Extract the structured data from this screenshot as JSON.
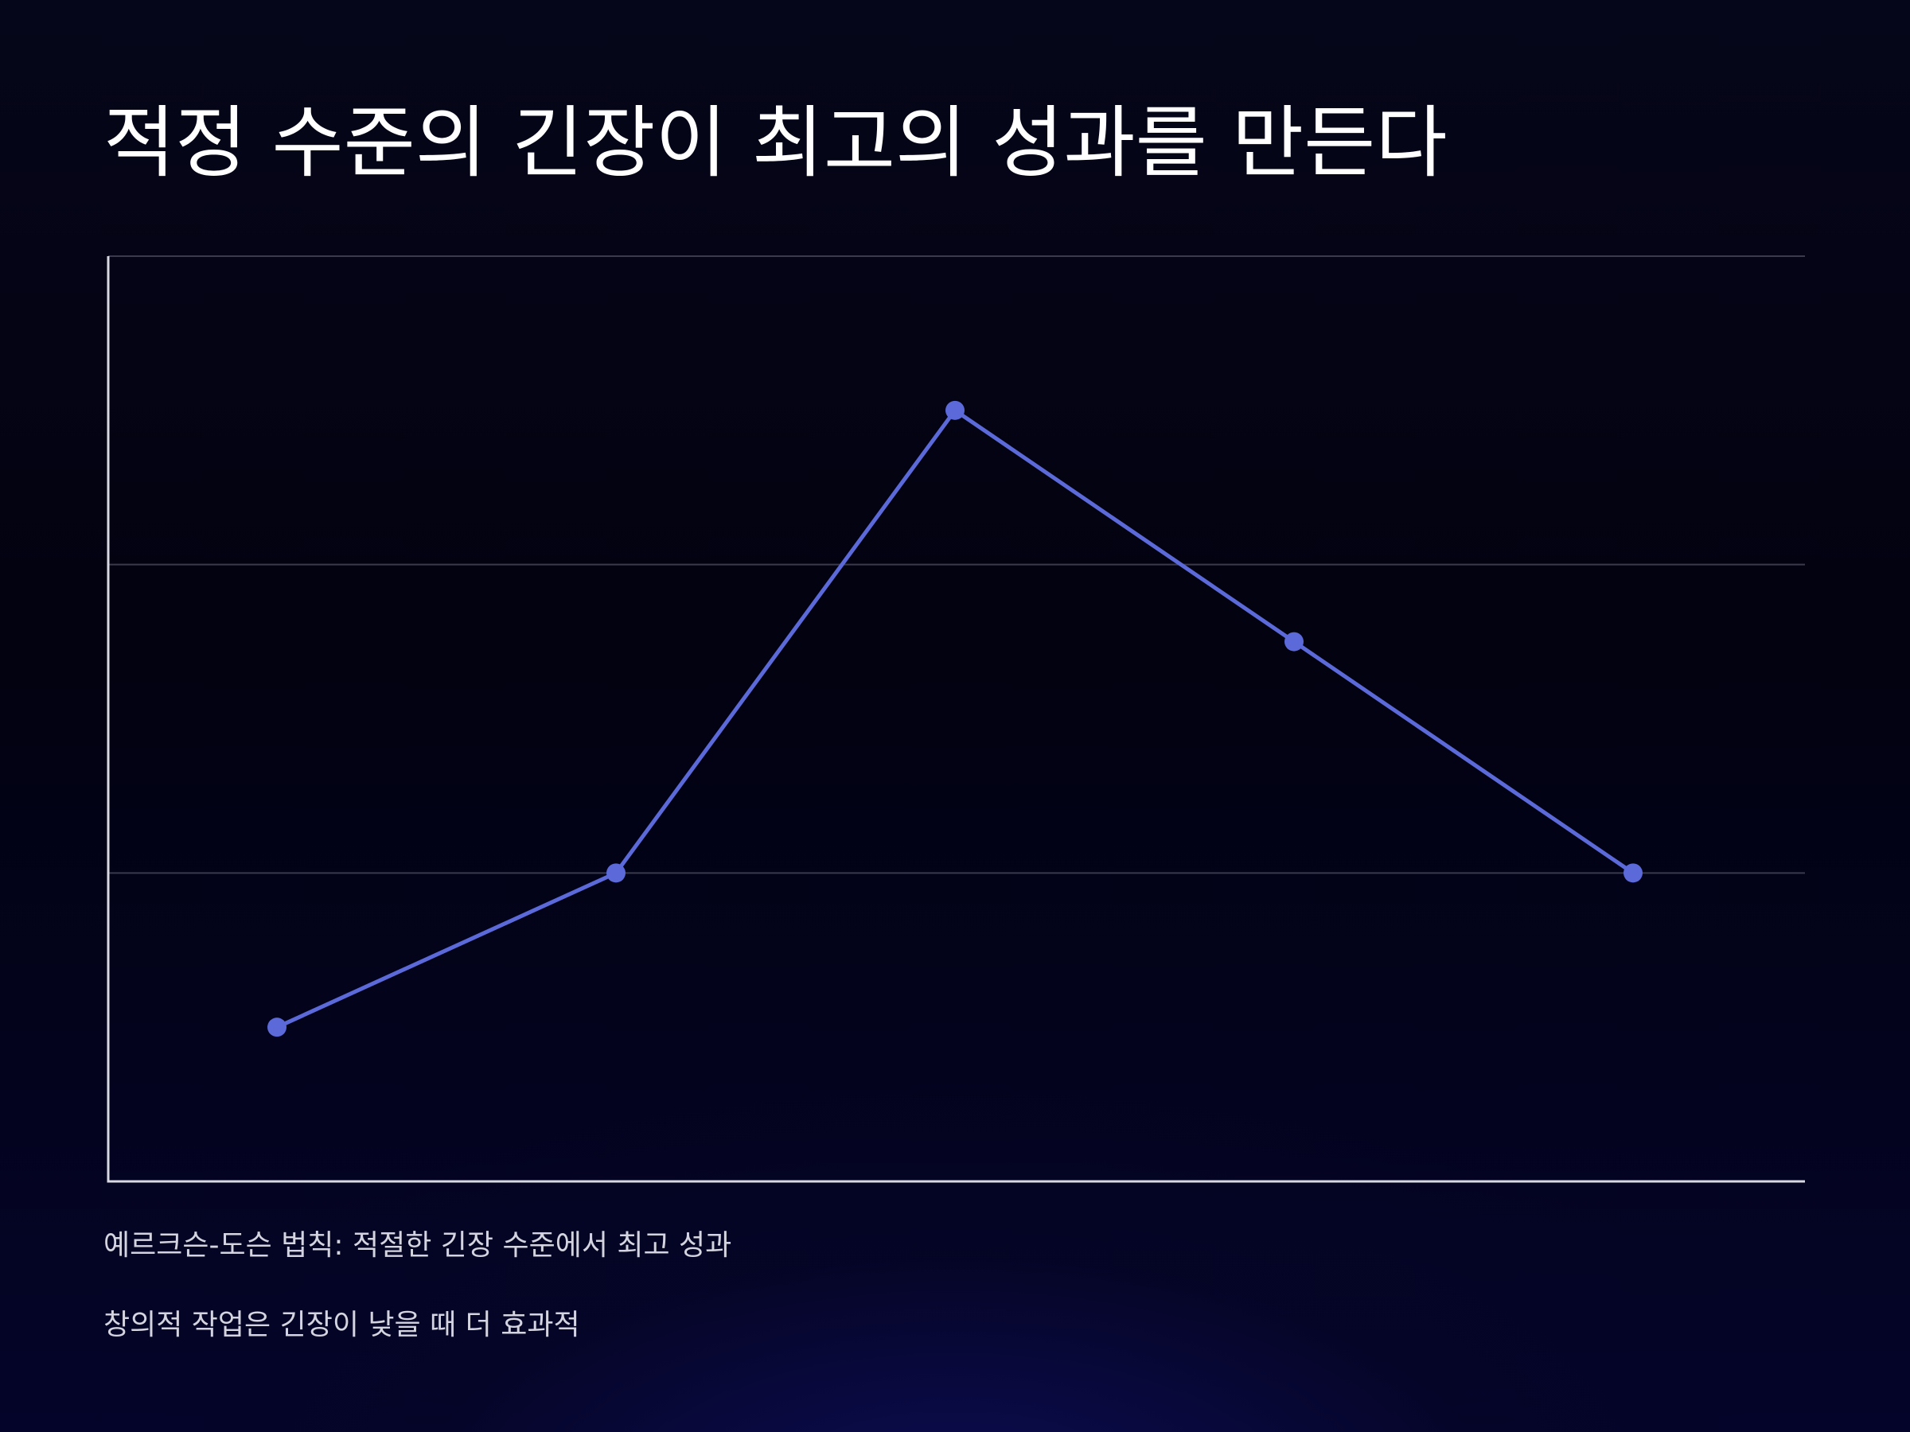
{
  "slide": {
    "title": "적정 수준의 긴장이 최고의 성과를 만든다",
    "notes": [
      "예르크슨-도슨 법칙: 적절한 긴장 수준에서 최고 성과",
      "창의적 작업은 긴장이 낮을 때 더 효과적"
    ]
  },
  "colors": {
    "line": "#5b6ad8",
    "axis": "#d9d9e3",
    "grid": "#3a3a4e",
    "title": "#ffffff",
    "notes": "#d4d4e0"
  },
  "chart_data": {
    "type": "line",
    "title": "",
    "xlabel": "",
    "ylabel": "",
    "x": [
      1,
      2,
      3,
      4,
      5
    ],
    "series": [
      {
        "values": [
          25,
          50,
          125,
          87.5,
          50
        ]
      }
    ],
    "ylim": [
      0,
      150
    ],
    "y_gridlines": [
      50,
      100,
      150
    ],
    "grid": true,
    "legend": "none",
    "markers": true
  }
}
